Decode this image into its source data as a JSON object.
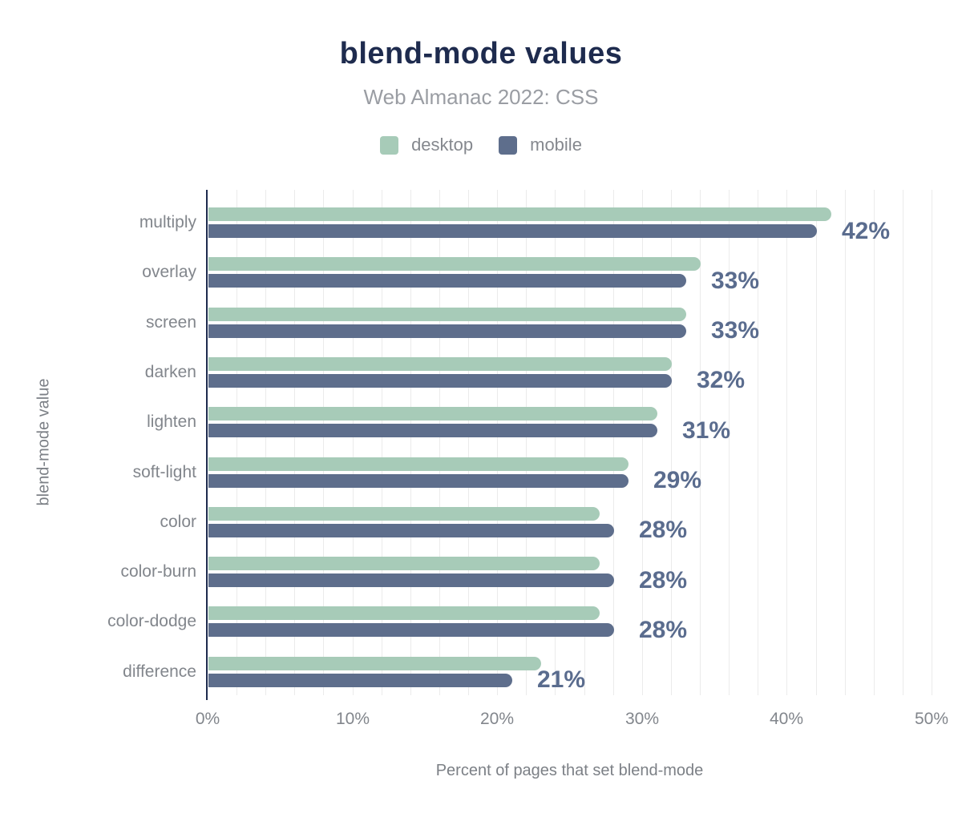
{
  "chart_data": {
    "type": "bar",
    "orientation": "horizontal",
    "title": "blend-mode values",
    "subtitle": "Web Almanac 2022: CSS",
    "categories": [
      "multiply",
      "overlay",
      "screen",
      "darken",
      "lighten",
      "soft-light",
      "color",
      "color-burn",
      "color-dodge",
      "difference"
    ],
    "series": [
      {
        "name": "desktop",
        "color": "#a7cbb8",
        "values": [
          43,
          34,
          33,
          32,
          31,
          29,
          27,
          27,
          27,
          23
        ]
      },
      {
        "name": "mobile",
        "color": "#5e6e8c",
        "values": [
          42,
          33,
          33,
          32,
          31,
          29,
          28,
          28,
          28,
          21
        ]
      }
    ],
    "annotations": [
      "42%",
      "33%",
      "33%",
      "32%",
      "31%",
      "29%",
      "28%",
      "28%",
      "28%",
      "21%"
    ],
    "annotation_source_series": "mobile",
    "xlabel": "Percent of pages that set blend-mode",
    "ylabel": "blend-mode value",
    "xlim": [
      0,
      50
    ],
    "xticks": [
      0,
      10,
      20,
      30,
      40,
      50
    ],
    "xtick_labels": [
      "0%",
      "10%",
      "20%",
      "30%",
      "40%",
      "50%"
    ],
    "gridline_step_pct": 2,
    "grid": "vertical-light",
    "legend_position": "top",
    "colors": {
      "title": "#1e2b4e",
      "subtitle": "#9a9da3",
      "axis_line": "#1e2b4e",
      "gridline": "#ebebeb",
      "tick_label": "#82868c",
      "category_label": "#82868c",
      "annotation": "#5a6c8e",
      "desktop_bar": "#a7cbb8",
      "mobile_bar": "#5e6e8c",
      "background": "#ffffff"
    }
  }
}
